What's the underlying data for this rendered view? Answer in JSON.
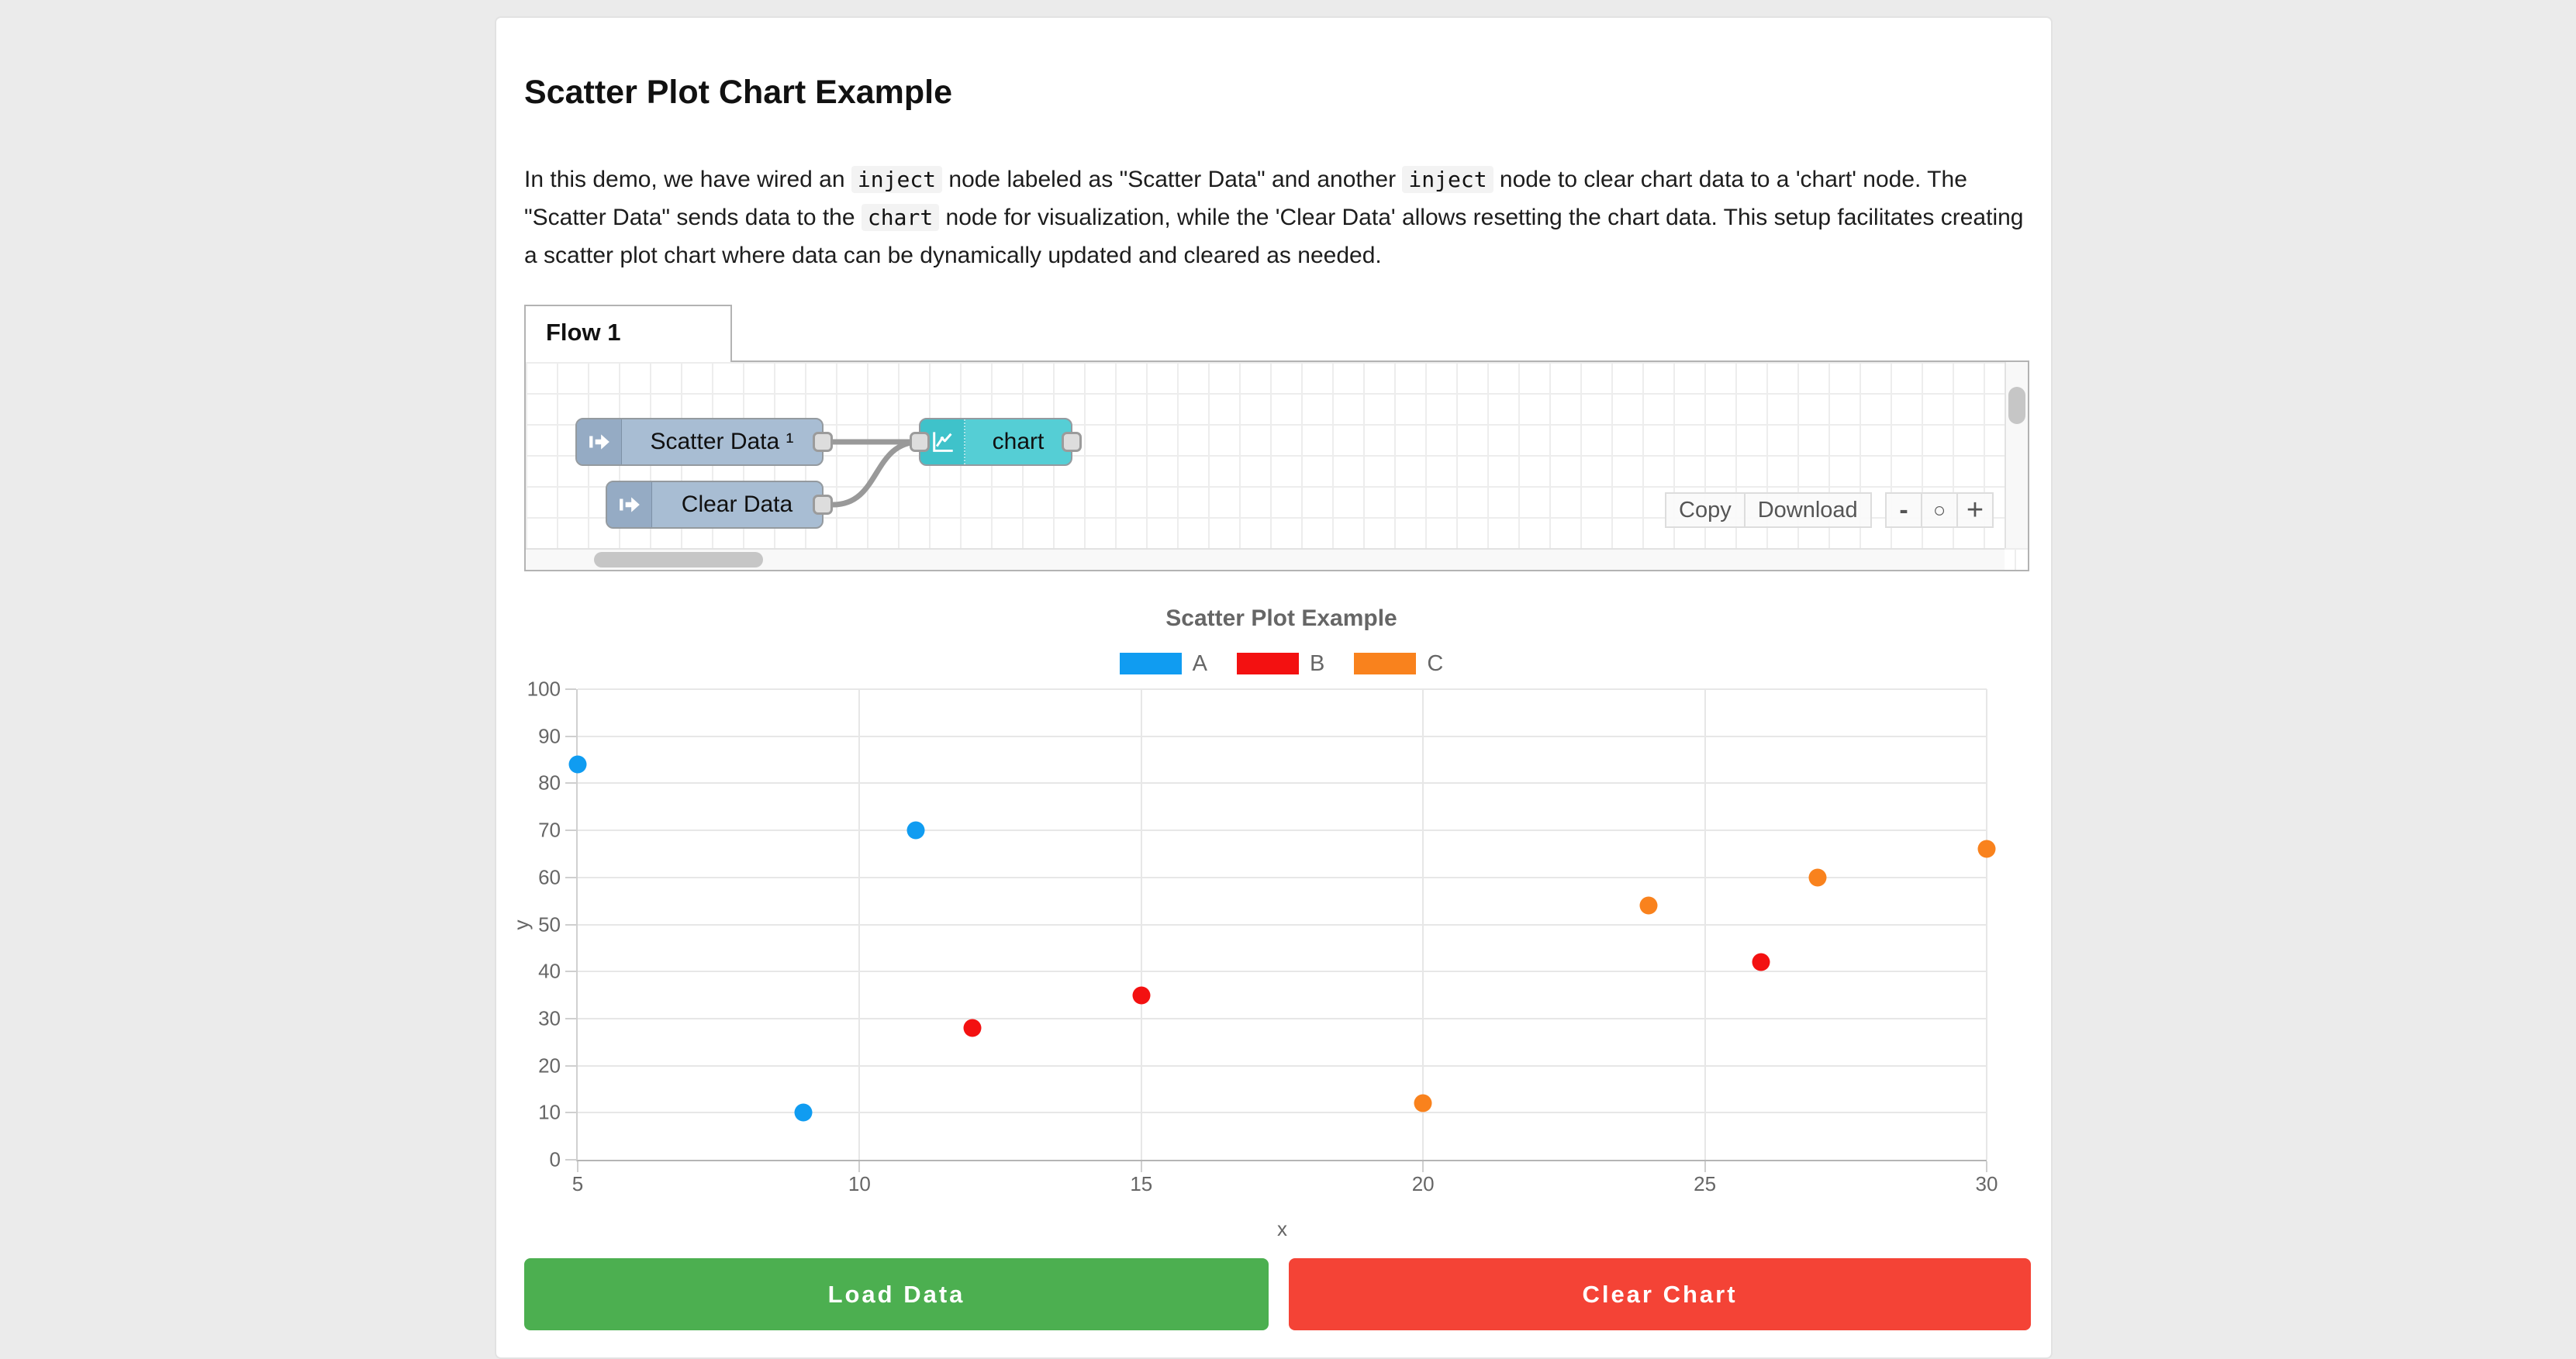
{
  "page": {
    "title": "Scatter Plot Chart Example",
    "description_segments": [
      {
        "text": "In this demo, we have wired an "
      },
      {
        "code": "inject"
      },
      {
        "text": " node labeled as \"Scatter Data\" and another "
      },
      {
        "code": "inject"
      },
      {
        "text": " node to clear chart data to a 'chart' node. The \"Scatter Data\" sends data to the "
      },
      {
        "code": "chart"
      },
      {
        "text": " node for visualization, while the 'Clear Data' allows resetting the chart data. This setup facilitates creating a scatter plot chart where data can be dynamically updated and cleared as needed."
      }
    ]
  },
  "flow": {
    "tab_label": "Flow 1",
    "nodes": [
      {
        "label": "Scatter Data ¹",
        "type": "inject",
        "color": "#a8bdd3"
      },
      {
        "label": "Clear Data",
        "type": "inject",
        "color": "#a8bdd3"
      },
      {
        "label": "chart",
        "type": "chart",
        "color": "#55ced5"
      }
    ],
    "toolbar": {
      "copy_label": "Copy",
      "download_label": "Download"
    },
    "zoom_controls": {
      "zoom_out": "-",
      "zoom_reset": "○",
      "zoom_in": "+"
    }
  },
  "chart_data": {
    "type": "scatter",
    "title": "Scatter Plot Example",
    "xlabel": "x",
    "ylabel": "y",
    "xlim": [
      5,
      30
    ],
    "ylim": [
      0,
      100
    ],
    "x_ticks": [
      5,
      10,
      15,
      20,
      25,
      30
    ],
    "y_ticks": [
      0,
      10,
      20,
      30,
      40,
      50,
      60,
      70,
      80,
      90,
      100
    ],
    "grid": true,
    "legend_position": "top",
    "series": [
      {
        "name": "A",
        "color": "#109cf1",
        "points": [
          [
            5,
            84
          ],
          [
            11,
            70
          ],
          [
            9,
            10
          ]
        ]
      },
      {
        "name": "B",
        "color": "#f31111",
        "points": [
          [
            12,
            28
          ],
          [
            15,
            35
          ],
          [
            26,
            42
          ]
        ]
      },
      {
        "name": "C",
        "color": "#f9821d",
        "points": [
          [
            20,
            12
          ],
          [
            24,
            54
          ],
          [
            27,
            60
          ],
          [
            30,
            66
          ]
        ]
      }
    ]
  },
  "buttons": {
    "load_label": "Load Data",
    "load_color": "#4caf50",
    "clear_label": "Clear Chart",
    "clear_color": "#f44336"
  }
}
